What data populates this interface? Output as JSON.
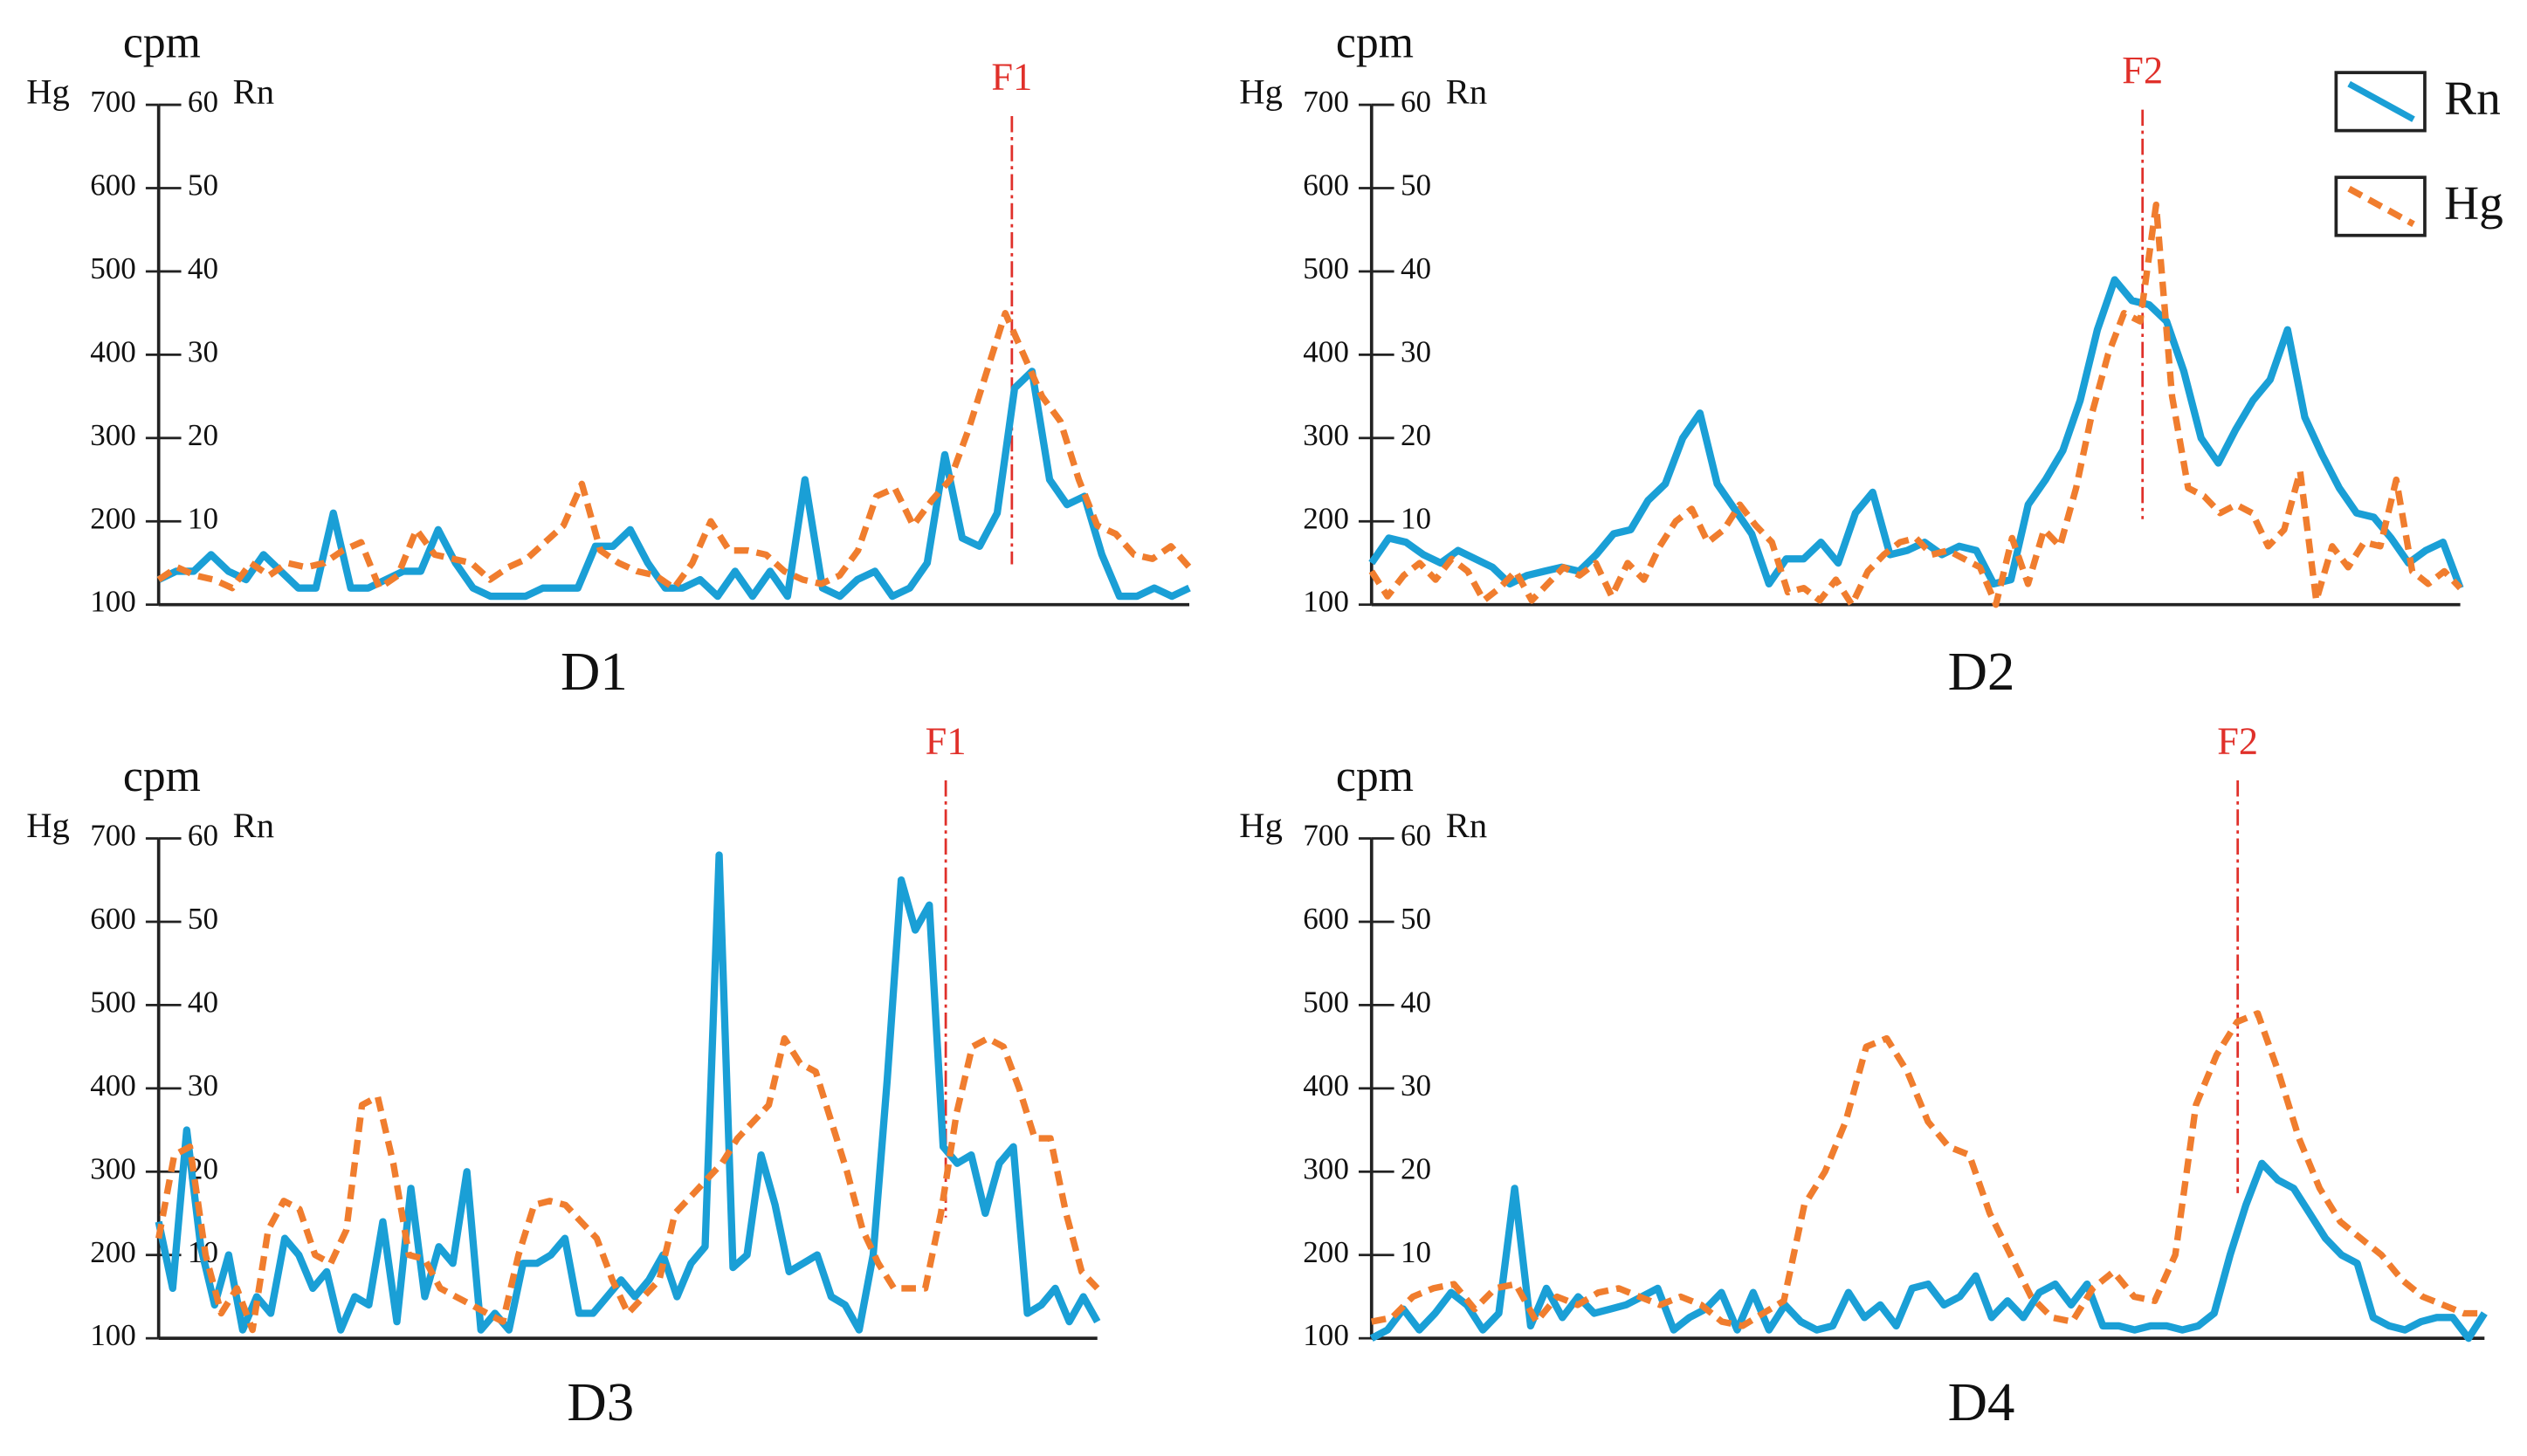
{
  "chart_data": [
    {
      "type": "line",
      "title": "D1",
      "unit": "cpm",
      "ylabel": "Hg",
      "y2label": "Rn",
      "annotation": "F1",
      "ylim": [
        100,
        700
      ],
      "yticks": [
        100,
        200,
        300,
        400,
        500,
        600,
        700
      ],
      "y2lim": [
        0,
        60
      ],
      "y2ticks": [
        10,
        20,
        30,
        40,
        50,
        60
      ],
      "series": [
        {
          "name": "Rn",
          "color": "#1a9fd6",
          "axis": "y2",
          "linestyle": "solid",
          "values": [
            3,
            4,
            4,
            6,
            4,
            3,
            6,
            4,
            2,
            2,
            11,
            2,
            2,
            3,
            4,
            4,
            9,
            5,
            2,
            1,
            1,
            1,
            2,
            2,
            2,
            7,
            7,
            9,
            5,
            2,
            2,
            3,
            1,
            4,
            1,
            4,
            1,
            15,
            2,
            1,
            3,
            4,
            1,
            2,
            5,
            18,
            8,
            7,
            11,
            26,
            28,
            15,
            12,
            13,
            6,
            1,
            1,
            2,
            1,
            2
          ]
        },
        {
          "name": "Hg",
          "color": "#f07d2e",
          "linestyle": "dashed",
          "values": [
            130,
            145,
            135,
            130,
            120,
            150,
            135,
            150,
            145,
            150,
            165,
            175,
            120,
            135,
            190,
            160,
            155,
            150,
            130,
            145,
            155,
            175,
            195,
            245,
            165,
            150,
            140,
            135,
            120,
            150,
            200,
            165,
            165,
            160,
            140,
            130,
            125,
            135,
            165,
            230,
            240,
            195,
            225,
            250,
            310,
            380,
            450,
            400,
            350,
            320,
            250,
            195,
            185,
            160,
            155,
            170,
            145
          ]
        }
      ]
    },
    {
      "type": "line",
      "title": "D2",
      "unit": "cpm",
      "ylabel": "Hg",
      "y2label": "Rn",
      "annotation": "F2",
      "legend": "upper right",
      "ylim": [
        100,
        700
      ],
      "yticks": [
        100,
        200,
        300,
        400,
        500,
        600,
        700
      ],
      "y2lim": [
        0,
        60
      ],
      "y2ticks": [
        10,
        20,
        30,
        40,
        50,
        60
      ],
      "series": [
        {
          "name": "Rn",
          "color": "#1a9fd6",
          "axis": "y2",
          "linestyle": "solid",
          "values": [
            5,
            8,
            7.5,
            6,
            5,
            6.5,
            5.5,
            4.5,
            2.5,
            3.5,
            4,
            4.5,
            4,
            6,
            8.5,
            9,
            12.5,
            14.5,
            20,
            23,
            14.5,
            11.5,
            8.5,
            2.5,
            5.5,
            5.5,
            7.5,
            5,
            11,
            13.5,
            6,
            6.5,
            7.5,
            6,
            7,
            6.5,
            2.5,
            3,
            12,
            15,
            18.5,
            24.5,
            33,
            39,
            36.5,
            36,
            34,
            28,
            20,
            17,
            21,
            24.5,
            27,
            33,
            22.5,
            18,
            14,
            11,
            10.5,
            8,
            5,
            6.5,
            7.5,
            2
          ]
        },
        {
          "name": "Hg",
          "color": "#f07d2e",
          "linestyle": "dashed",
          "values": [
            140,
            110,
            135,
            150,
            130,
            155,
            140,
            105,
            120,
            140,
            105,
            125,
            145,
            135,
            150,
            110,
            150,
            130,
            170,
            200,
            215,
            175,
            190,
            220,
            195,
            175,
            115,
            120,
            105,
            130,
            100,
            140,
            160,
            175,
            180,
            160,
            165,
            155,
            145,
            100,
            180,
            125,
            190,
            170,
            240,
            330,
            400,
            450,
            440,
            580,
            350,
            240,
            230,
            210,
            220,
            210,
            170,
            190,
            260,
            105,
            170,
            145,
            175,
            170,
            250,
            140,
            125,
            140,
            120
          ]
        }
      ]
    },
    {
      "type": "line",
      "title": "D3",
      "unit": "cpm",
      "ylabel": "Hg",
      "y2label": "Rn",
      "annotation": "F1",
      "ylim": [
        100,
        700
      ],
      "yticks": [
        100,
        200,
        300,
        400,
        500,
        600,
        700
      ],
      "y2lim": [
        0,
        60
      ],
      "y2ticks": [
        10,
        20,
        30,
        40,
        50,
        60
      ],
      "series": [
        {
          "name": "Rn",
          "color": "#1a9fd6",
          "axis": "y2",
          "linestyle": "solid",
          "values": [
            14,
            6,
            25,
            11,
            4,
            10,
            1,
            5,
            3,
            12,
            10,
            6,
            8,
            1,
            5,
            4,
            14,
            2,
            18,
            5,
            11,
            9,
            20,
            1,
            3,
            1,
            9,
            9,
            10,
            12,
            3,
            3,
            5,
            7,
            5,
            7,
            10,
            5,
            9,
            11,
            58,
            8.5,
            10,
            22,
            16,
            8,
            9,
            10,
            5,
            4,
            1,
            10,
            31,
            55,
            49,
            52,
            23,
            21,
            22,
            15,
            21,
            23,
            3,
            4,
            6,
            2,
            5,
            2
          ]
        },
        {
          "name": "Hg",
          "color": "#f07d2e",
          "linestyle": "dashed",
          "values": [
            220,
            320,
            330,
            200,
            130,
            160,
            110,
            230,
            265,
            255,
            200,
            190,
            230,
            380,
            390,
            310,
            200,
            195,
            160,
            150,
            140,
            130,
            120,
            200,
            260,
            265,
            260,
            240,
            220,
            170,
            130,
            150,
            170,
            250,
            270,
            290,
            310,
            340,
            360,
            380,
            460,
            430,
            420,
            360,
            300,
            230,
            190,
            160,
            160,
            160,
            250,
            370,
            450,
            460,
            450,
            400,
            340,
            340,
            250,
            180,
            160
          ]
        }
      ]
    },
    {
      "type": "line",
      "title": "D4",
      "unit": "cpm",
      "ylabel": "Hg",
      "y2label": "Rn",
      "annotation": "F2",
      "ylim": [
        100,
        700
      ],
      "yticks": [
        100,
        200,
        300,
        400,
        500,
        600,
        700
      ],
      "y2lim": [
        0,
        60
      ],
      "y2ticks": [
        10,
        20,
        30,
        40,
        50,
        60
      ],
      "series": [
        {
          "name": "Rn",
          "color": "#1a9fd6",
          "axis": "y2",
          "linestyle": "solid",
          "values": [
            0,
            1,
            3.5,
            1,
            3,
            5.5,
            4,
            1,
            3,
            18,
            1.5,
            6,
            2.5,
            5,
            3,
            3.5,
            4,
            5,
            6,
            1,
            2.5,
            3.5,
            5.5,
            1,
            5.5,
            1,
            4,
            2,
            1,
            1.5,
            5.5,
            2.5,
            4,
            1.5,
            6,
            6.5,
            4,
            5,
            7.5,
            2.5,
            4.5,
            2.5,
            5.5,
            6.5,
            4,
            6.5,
            1.5,
            1.5,
            1,
            1.5,
            1.5,
            1,
            1.5,
            3,
            10,
            16,
            21,
            19,
            18,
            15,
            12,
            10,
            9,
            2.5,
            1.5,
            1,
            2,
            2.5,
            2.5,
            0,
            3
          ]
        },
        {
          "name": "Hg",
          "color": "#f07d2e",
          "linestyle": "dashed",
          "values": [
            120,
            125,
            150,
            160,
            165,
            135,
            160,
            165,
            120,
            150,
            140,
            155,
            160,
            150,
            140,
            150,
            140,
            120,
            115,
            130,
            145,
            260,
            300,
            360,
            450,
            460,
            420,
            360,
            330,
            320,
            250,
            200,
            150,
            125,
            120,
            160,
            180,
            150,
            145,
            200,
            380,
            440,
            480,
            490,
            420,
            340,
            280,
            240,
            220,
            200,
            170,
            150,
            140,
            130,
            130
          ]
        }
      ]
    }
  ]
}
